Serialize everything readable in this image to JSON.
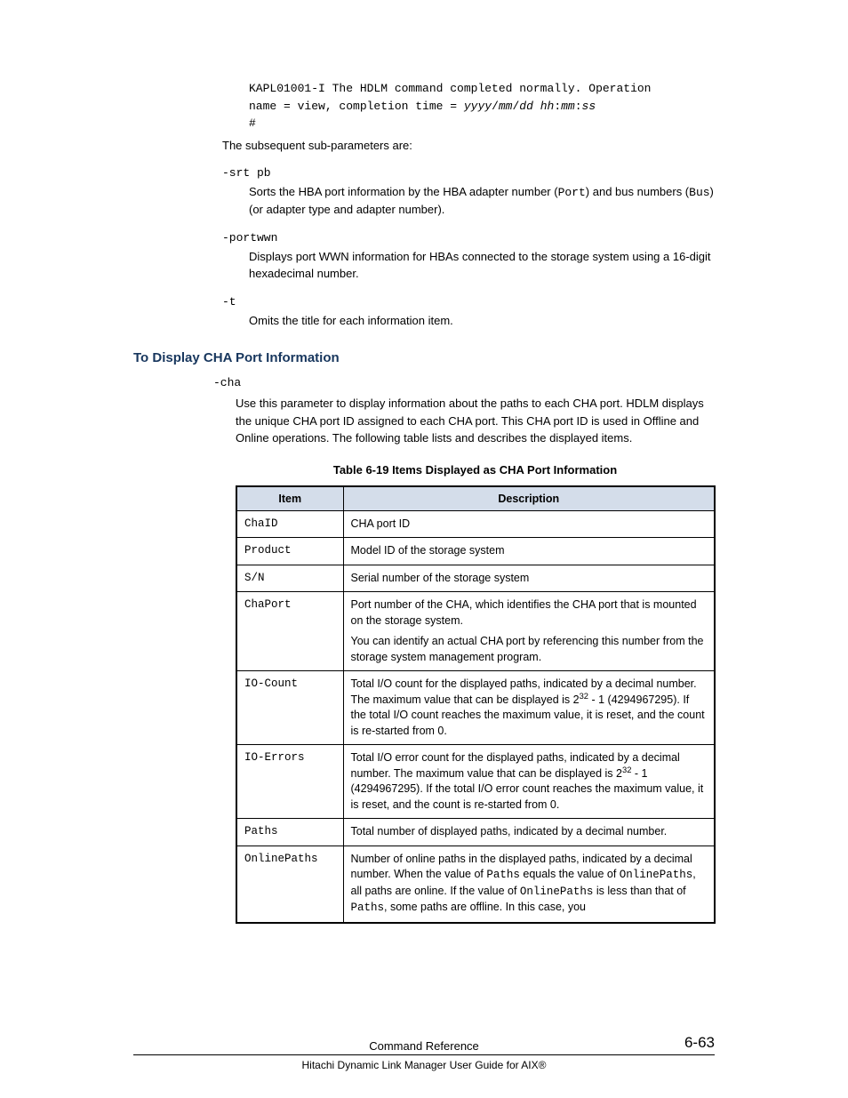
{
  "codeBlock": {
    "line1": "KAPL01001-I The HDLM command completed normally. Operation",
    "line2_prefix": "name = view, completion time = ",
    "line2_italic": "yyyy",
    "line2_s1": "/",
    "line2_italic2": "mm",
    "line2_s2": "/",
    "line2_italic3": "dd hh",
    "line2_s3": ":",
    "line2_italic4": "mm",
    "line2_s4": ":",
    "line2_italic5": "ss",
    "line3": "#"
  },
  "subParamsIntro": "The subsequent sub-parameters are:",
  "params": {
    "srt": {
      "name": "-srt pb",
      "desc_prefix": "Sorts the HBA port information by the HBA adapter number (",
      "desc_code1": "Port",
      "desc_mid": ") and bus numbers (",
      "desc_code2": "Bus",
      "desc_suffix": ") (or adapter type and adapter number)."
    },
    "portwwn": {
      "name": "-portwwn",
      "desc": "Displays port WWN information for HBAs connected to the storage system using a 16-digit hexadecimal number."
    },
    "t": {
      "name": "-t",
      "desc": "Omits the title for each information item."
    }
  },
  "section": {
    "heading": "To Display CHA Port Information",
    "paramName": "-cha",
    "paramDesc": "Use this parameter to display information about the paths to each CHA port. HDLM displays the unique CHA port ID assigned to each CHA port. This CHA port ID is used in Offline and Online operations. The following table lists and describes the displayed items."
  },
  "table": {
    "caption": "Table 6-19 Items Displayed as CHA Port Information",
    "headers": {
      "item": "Item",
      "desc": "Description"
    },
    "rows": [
      {
        "item": "ChaID",
        "desc": [
          {
            "text": "CHA port ID"
          }
        ]
      },
      {
        "item": "Product",
        "desc": [
          {
            "text": "Model ID of the storage system"
          }
        ]
      },
      {
        "item": "S/N",
        "desc": [
          {
            "text": "Serial number of the storage system"
          }
        ]
      },
      {
        "item": "ChaPort",
        "desc": [
          {
            "text": "Port number of the CHA, which identifies the CHA port that is mounted on the storage system."
          },
          {
            "text": "You can identify an actual CHA port by referencing this number from the storage system management program."
          }
        ]
      },
      {
        "item": "IO-Count",
        "desc": [
          {
            "parts": [
              {
                "t": "text",
                "v": "Total I/O count for the displayed paths, indicated by a decimal number. The maximum value that can be displayed is 2"
              },
              {
                "t": "sup",
                "v": "32"
              },
              {
                "t": "text",
                "v": " - 1 (4294967295). If the total I/O count reaches the maximum value, it is reset, and the count is re-started from 0."
              }
            ]
          }
        ]
      },
      {
        "item": "IO-Errors",
        "desc": [
          {
            "parts": [
              {
                "t": "text",
                "v": "Total I/O error count for the displayed paths, indicated by a decimal number. The maximum value that can be displayed is 2"
              },
              {
                "t": "sup",
                "v": "32"
              },
              {
                "t": "text",
                "v": " - 1 (4294967295). If the total I/O error count reaches the maximum value, it is reset, and the count is re-started from 0."
              }
            ]
          }
        ]
      },
      {
        "item": "Paths",
        "desc": [
          {
            "text": "Total number of displayed paths, indicated by a decimal number."
          }
        ]
      },
      {
        "item": "OnlinePaths",
        "desc": [
          {
            "parts": [
              {
                "t": "text",
                "v": "Number of online paths in the displayed paths, indicated by a decimal number. When the value of "
              },
              {
                "t": "code",
                "v": "Paths"
              },
              {
                "t": "text",
                "v": " equals the value of "
              },
              {
                "t": "code",
                "v": "OnlinePaths"
              },
              {
                "t": "text",
                "v": ", all paths are online. If the value of "
              },
              {
                "t": "code",
                "v": "OnlinePaths"
              },
              {
                "t": "text",
                "v": " is less than that of "
              },
              {
                "t": "code",
                "v": "Paths"
              },
              {
                "t": "text",
                "v": ", some paths are offline. In this case, you"
              }
            ]
          }
        ]
      }
    ]
  },
  "footer": {
    "title": "Command Reference",
    "sub": "Hitachi Dynamic Link Manager User Guide for AIX®",
    "pageNum": "6-63"
  }
}
